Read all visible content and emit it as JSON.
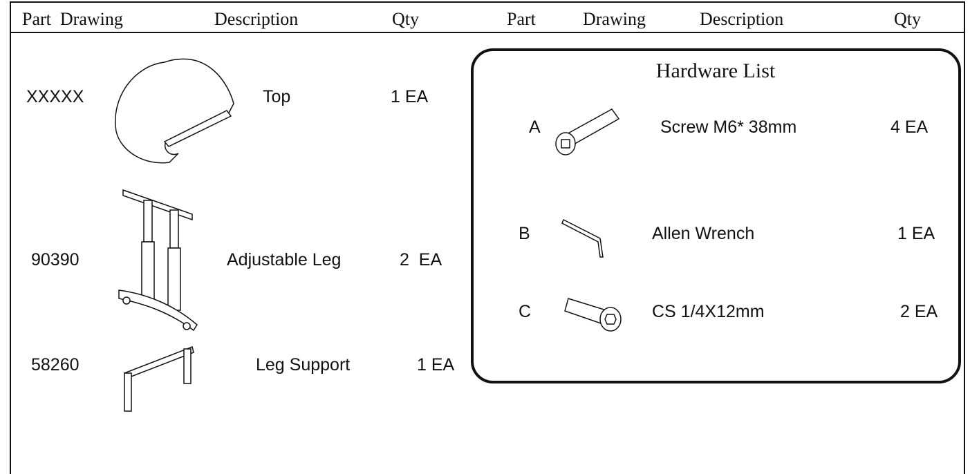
{
  "columns": [
    "Part  Drawing",
    "Description",
    "Qty",
    "Part",
    "Drawing",
    "Description",
    "Qty"
  ],
  "parts": [
    {
      "part": "XXXXX",
      "description": "Top",
      "qty": "1 EA"
    },
    {
      "part": "90390",
      "description": "Adjustable Leg",
      "qty": "2  EA"
    },
    {
      "part": "58260",
      "description": "Leg Support",
      "qty": "1 EA"
    }
  ],
  "hardware": {
    "title": "Hardware List",
    "items": [
      {
        "part": "A",
        "description": "Screw M6* 38mm",
        "qty": "4 EA"
      },
      {
        "part": "B",
        "description": "Allen Wrench",
        "qty": "1 EA"
      },
      {
        "part": "C",
        "description": "CS 1/4X12mm",
        "qty": "2 EA"
      }
    ]
  }
}
